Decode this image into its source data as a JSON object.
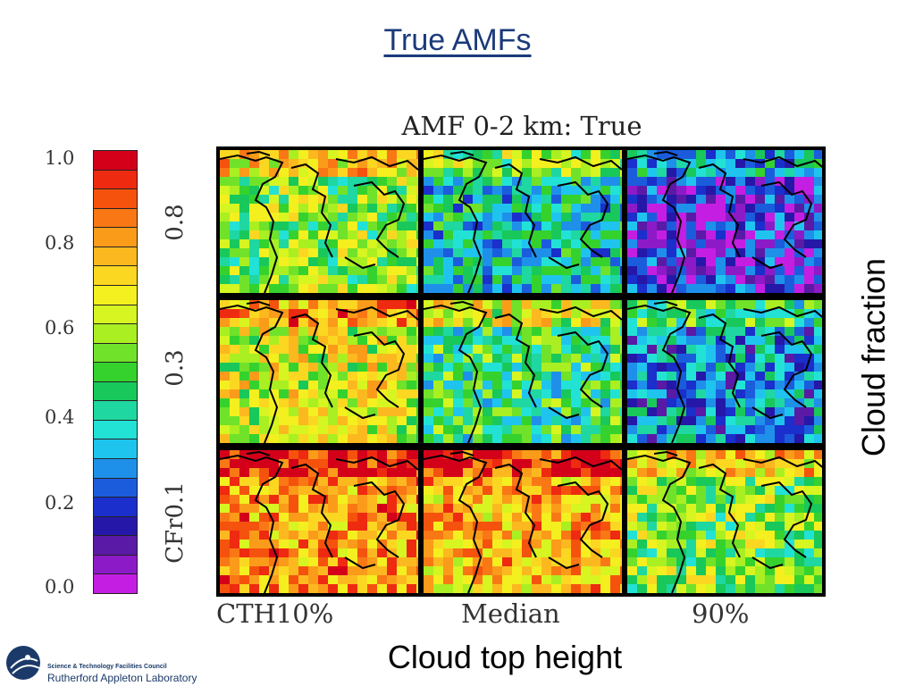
{
  "slide": {
    "title": "True AMFs"
  },
  "figure": {
    "title": "AMF 0-2 km: True",
    "colorbar": {
      "ticks": [
        "1.0",
        "0.8",
        "0.6",
        "0.4",
        "0.2",
        "0.0"
      ],
      "colors": [
        "#d4001a",
        "#ee2a10",
        "#f5520e",
        "#f97815",
        "#fb9b1a",
        "#fcb91f",
        "#fbd722",
        "#f4ef1f",
        "#d6f521",
        "#a9ef22",
        "#70e22a",
        "#35d22e",
        "#18c85a",
        "#1fd7a0",
        "#22e2d6",
        "#1fc4ee",
        "#1e90ea",
        "#1b5cdd",
        "#1a2fcb",
        "#2518a8",
        "#5a1aa6",
        "#8d1ac7",
        "#c41ee3"
      ]
    },
    "row_labels": [
      "0.8",
      "0.3",
      "CFr0.1"
    ],
    "col_labels": [
      "CTH10%",
      "Median",
      "90%"
    ],
    "xlabel": "Cloud top height",
    "ylabel": "Cloud fraction"
  },
  "logo": {
    "line1": "Science & Technology Facilities Council",
    "line2": "Rutherford Appleton Laboratory"
  }
}
